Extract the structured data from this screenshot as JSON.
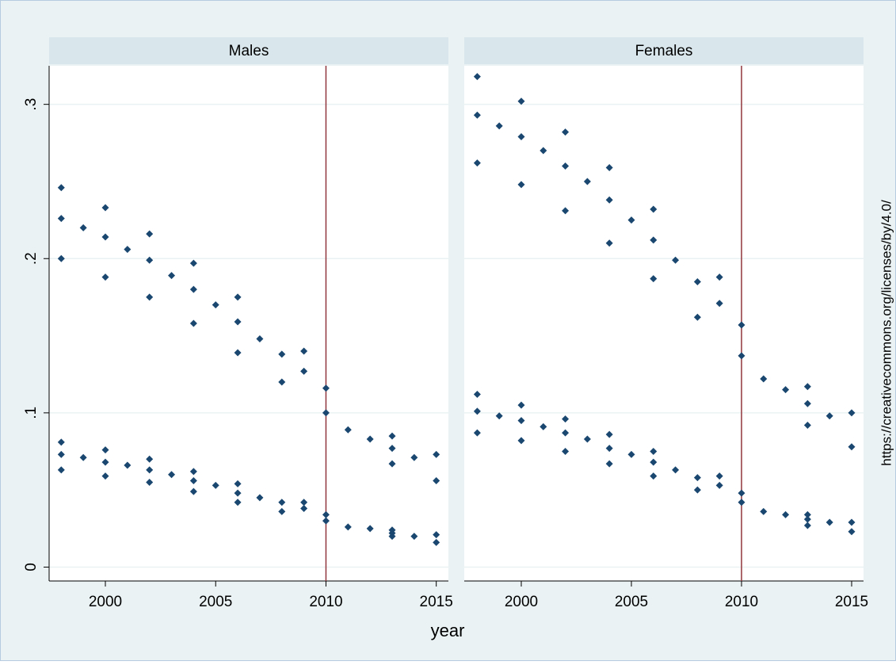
{
  "xlabel": "year",
  "watermark": "https://creativecommons.org/licenses/by/4.0/",
  "chart_data": [
    {
      "type": "scatter",
      "title": "Males",
      "color": "#1a476f",
      "vline": 2010,
      "vline_color": "#90353b",
      "grid": true,
      "xlim": [
        1997.45,
        2015.55
      ],
      "ylim": [
        -0.009,
        0.325
      ],
      "xticks": [
        2000,
        2005,
        2010,
        2015
      ],
      "yticks": [
        0,
        {
          "value": 0.1,
          "label": ".1"
        },
        {
          "value": 0.2,
          "label": ".2"
        },
        {
          "value": 0.3,
          "label": ".3"
        }
      ],
      "x": [
        1998,
        1998,
        1998,
        1998,
        1998,
        1998,
        1999,
        1999,
        2000,
        2000,
        2000,
        2000,
        2000,
        2000,
        2001,
        2001,
        2002,
        2002,
        2002,
        2002,
        2002,
        2002,
        2003,
        2003,
        2004,
        2004,
        2004,
        2004,
        2004,
        2004,
        2005,
        2005,
        2006,
        2006,
        2006,
        2006,
        2006,
        2006,
        2007,
        2007,
        2008,
        2008,
        2008,
        2008,
        2009,
        2009,
        2009,
        2009,
        2010,
        2010,
        2010,
        2010,
        2011,
        2011,
        2012,
        2012,
        2013,
        2013,
        2013,
        2013,
        2013,
        2013,
        2014,
        2014,
        2015,
        2015,
        2015,
        2015
      ],
      "values": [
        0.246,
        0.226,
        0.2,
        0.081,
        0.073,
        0.063,
        0.22,
        0.071,
        0.233,
        0.214,
        0.188,
        0.076,
        0.068,
        0.059,
        0.206,
        0.066,
        0.216,
        0.199,
        0.175,
        0.07,
        0.063,
        0.055,
        0.189,
        0.06,
        0.197,
        0.18,
        0.158,
        0.062,
        0.056,
        0.049,
        0.17,
        0.053,
        0.175,
        0.159,
        0.139,
        0.054,
        0.048,
        0.042,
        0.148,
        0.045,
        0.138,
        0.12,
        0.042,
        0.036,
        0.14,
        0.127,
        0.042,
        0.038,
        0.116,
        0.1,
        0.034,
        0.03,
        0.089,
        0.026,
        0.083,
        0.025,
        0.085,
        0.077,
        0.067,
        0.024,
        0.022,
        0.02,
        0.071,
        0.02,
        0.073,
        0.056,
        0.021,
        0.016
      ]
    },
    {
      "type": "scatter",
      "title": "Females",
      "color": "#1a476f",
      "vline": 2010,
      "vline_color": "#90353b",
      "grid": true,
      "xlim": [
        1997.41,
        2015.54
      ],
      "ylim": [
        -0.009,
        0.325
      ],
      "xticks": [
        2000,
        2005,
        2010,
        2015
      ],
      "x": [
        1998,
        1998,
        1998,
        1998,
        1998,
        1998,
        1999,
        1999,
        2000,
        2000,
        2000,
        2000,
        2000,
        2000,
        2001,
        2001,
        2002,
        2002,
        2002,
        2002,
        2002,
        2002,
        2003,
        2003,
        2004,
        2004,
        2004,
        2004,
        2004,
        2004,
        2005,
        2005,
        2006,
        2006,
        2006,
        2006,
        2006,
        2006,
        2007,
        2007,
        2008,
        2008,
        2008,
        2008,
        2009,
        2009,
        2009,
        2009,
        2010,
        2010,
        2010,
        2010,
        2011,
        2011,
        2012,
        2012,
        2013,
        2013,
        2013,
        2013,
        2013,
        2013,
        2014,
        2014,
        2015,
        2015,
        2015,
        2015
      ],
      "values": [
        0.318,
        0.293,
        0.262,
        0.112,
        0.101,
        0.087,
        0.286,
        0.098,
        0.302,
        0.279,
        0.248,
        0.105,
        0.095,
        0.082,
        0.27,
        0.091,
        0.282,
        0.26,
        0.231,
        0.096,
        0.087,
        0.075,
        0.25,
        0.083,
        0.259,
        0.238,
        0.21,
        0.086,
        0.077,
        0.067,
        0.225,
        0.073,
        0.232,
        0.212,
        0.187,
        0.075,
        0.068,
        0.059,
        0.199,
        0.063,
        0.185,
        0.162,
        0.058,
        0.05,
        0.188,
        0.171,
        0.059,
        0.053,
        0.157,
        0.137,
        0.048,
        0.042,
        0.122,
        0.036,
        0.115,
        0.034,
        0.117,
        0.106,
        0.092,
        0.034,
        0.031,
        0.027,
        0.098,
        0.029,
        0.1,
        0.078,
        0.029,
        0.023
      ]
    }
  ]
}
